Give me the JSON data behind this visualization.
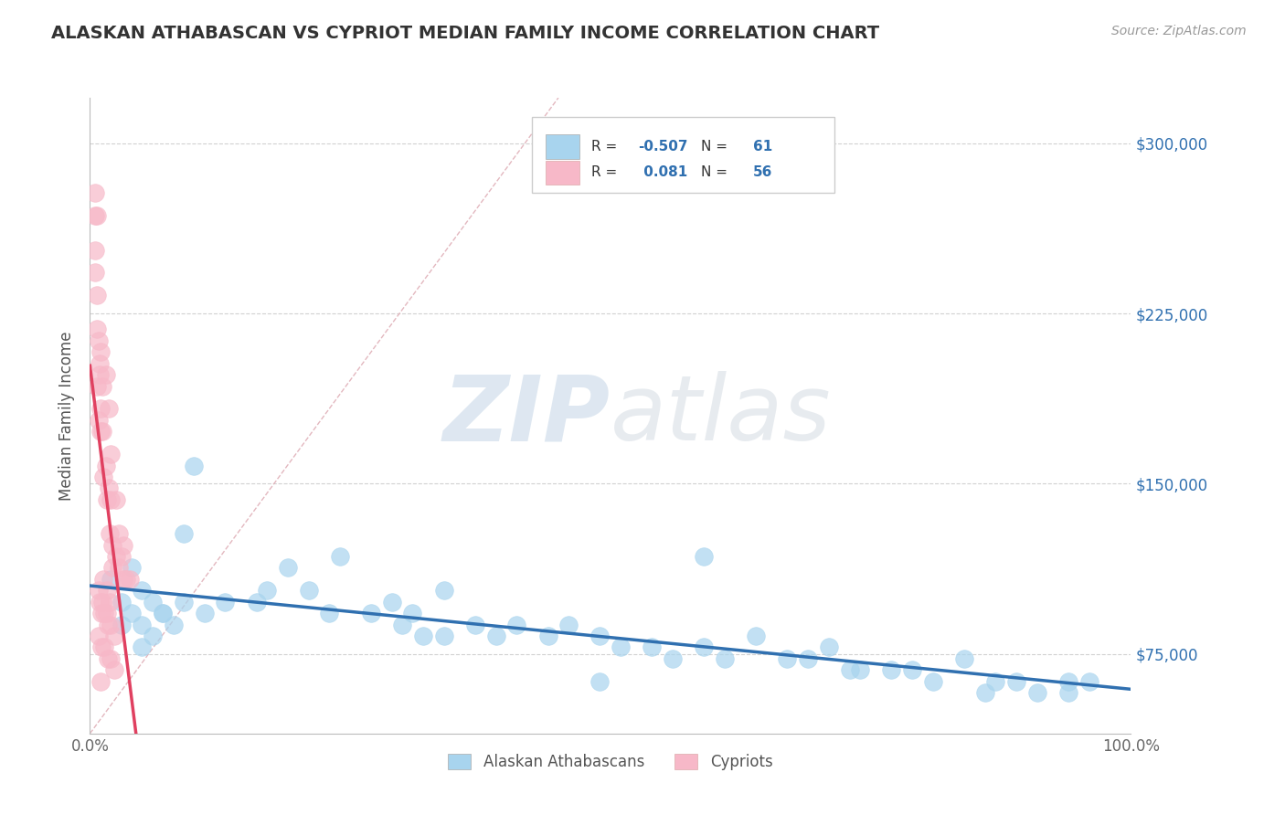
{
  "title": "ALASKAN ATHABASCAN VS CYPRIOT MEDIAN FAMILY INCOME CORRELATION CHART",
  "source_text": "Source: ZipAtlas.com",
  "ylabel": "Median Family Income",
  "xlim": [
    0.0,
    1.0
  ],
  "ylim": [
    40000,
    320000
  ],
  "plot_ylim": [
    40000,
    320000
  ],
  "xtick_positions": [
    0.0,
    1.0
  ],
  "xtick_labels": [
    "0.0%",
    "100.0%"
  ],
  "ytick_values": [
    75000,
    150000,
    225000,
    300000
  ],
  "ytick_labels": [
    "$75,000",
    "$150,000",
    "$225,000",
    "$300,000"
  ],
  "R_blue": -0.507,
  "N_blue": 61,
  "R_pink": 0.081,
  "N_pink": 56,
  "blue_color": "#A8D4EE",
  "pink_color": "#F7B8C8",
  "trend_blue_color": "#3070B0",
  "trend_pink_color": "#E04060",
  "diagonal_color": "#E0B0B8",
  "legend_labels": [
    "Alaskan Athabascans",
    "Cypriots"
  ],
  "watermark": "ZIPatlas",
  "background_color": "#FFFFFF",
  "blue_scatter_x": [
    0.02,
    0.03,
    0.04,
    0.05,
    0.04,
    0.05,
    0.06,
    0.07,
    0.06,
    0.08,
    0.09,
    0.1,
    0.07,
    0.09,
    0.11,
    0.13,
    0.16,
    0.19,
    0.21,
    0.24,
    0.27,
    0.29,
    0.31,
    0.3,
    0.32,
    0.34,
    0.37,
    0.39,
    0.41,
    0.44,
    0.46,
    0.49,
    0.51,
    0.54,
    0.56,
    0.59,
    0.61,
    0.64,
    0.67,
    0.69,
    0.71,
    0.74,
    0.77,
    0.79,
    0.81,
    0.84,
    0.86,
    0.89,
    0.91,
    0.94,
    0.96,
    0.03,
    0.05,
    0.17,
    0.23,
    0.34,
    0.49,
    0.59,
    0.73,
    0.87,
    0.94
  ],
  "blue_scatter_y": [
    108000,
    98000,
    93000,
    103000,
    113000,
    88000,
    98000,
    93000,
    83000,
    88000,
    128000,
    158000,
    93000,
    98000,
    93000,
    98000,
    98000,
    113000,
    103000,
    118000,
    93000,
    98000,
    93000,
    88000,
    83000,
    103000,
    88000,
    83000,
    88000,
    83000,
    88000,
    83000,
    78000,
    78000,
    73000,
    78000,
    73000,
    83000,
    73000,
    73000,
    78000,
    68000,
    68000,
    68000,
    63000,
    73000,
    58000,
    63000,
    58000,
    58000,
    63000,
    88000,
    78000,
    103000,
    93000,
    83000,
    63000,
    118000,
    68000,
    63000,
    63000
  ],
  "pink_scatter_x": [
    0.005,
    0.005,
    0.005,
    0.007,
    0.007,
    0.007,
    0.008,
    0.008,
    0.009,
    0.009,
    0.01,
    0.01,
    0.01,
    0.012,
    0.012,
    0.013,
    0.015,
    0.015,
    0.016,
    0.018,
    0.018,
    0.019,
    0.02,
    0.02,
    0.022,
    0.022,
    0.025,
    0.025,
    0.028,
    0.028,
    0.03,
    0.032,
    0.032,
    0.035,
    0.038,
    0.008,
    0.012,
    0.016,
    0.009,
    0.011,
    0.014,
    0.017,
    0.02,
    0.023,
    0.008,
    0.011,
    0.014,
    0.017,
    0.02,
    0.023,
    0.005,
    0.007,
    0.01,
    0.013,
    0.016,
    0.019
  ],
  "pink_scatter_y": [
    268000,
    253000,
    243000,
    233000,
    218000,
    193000,
    178000,
    213000,
    203000,
    198000,
    183000,
    173000,
    208000,
    193000,
    173000,
    153000,
    198000,
    158000,
    143000,
    183000,
    148000,
    128000,
    163000,
    143000,
    123000,
    113000,
    143000,
    118000,
    128000,
    113000,
    118000,
    123000,
    108000,
    108000,
    108000,
    103000,
    98000,
    103000,
    98000,
    93000,
    93000,
    88000,
    88000,
    83000,
    83000,
    78000,
    78000,
    73000,
    73000,
    68000,
    278000,
    268000,
    63000,
    108000,
    93000,
    98000
  ]
}
